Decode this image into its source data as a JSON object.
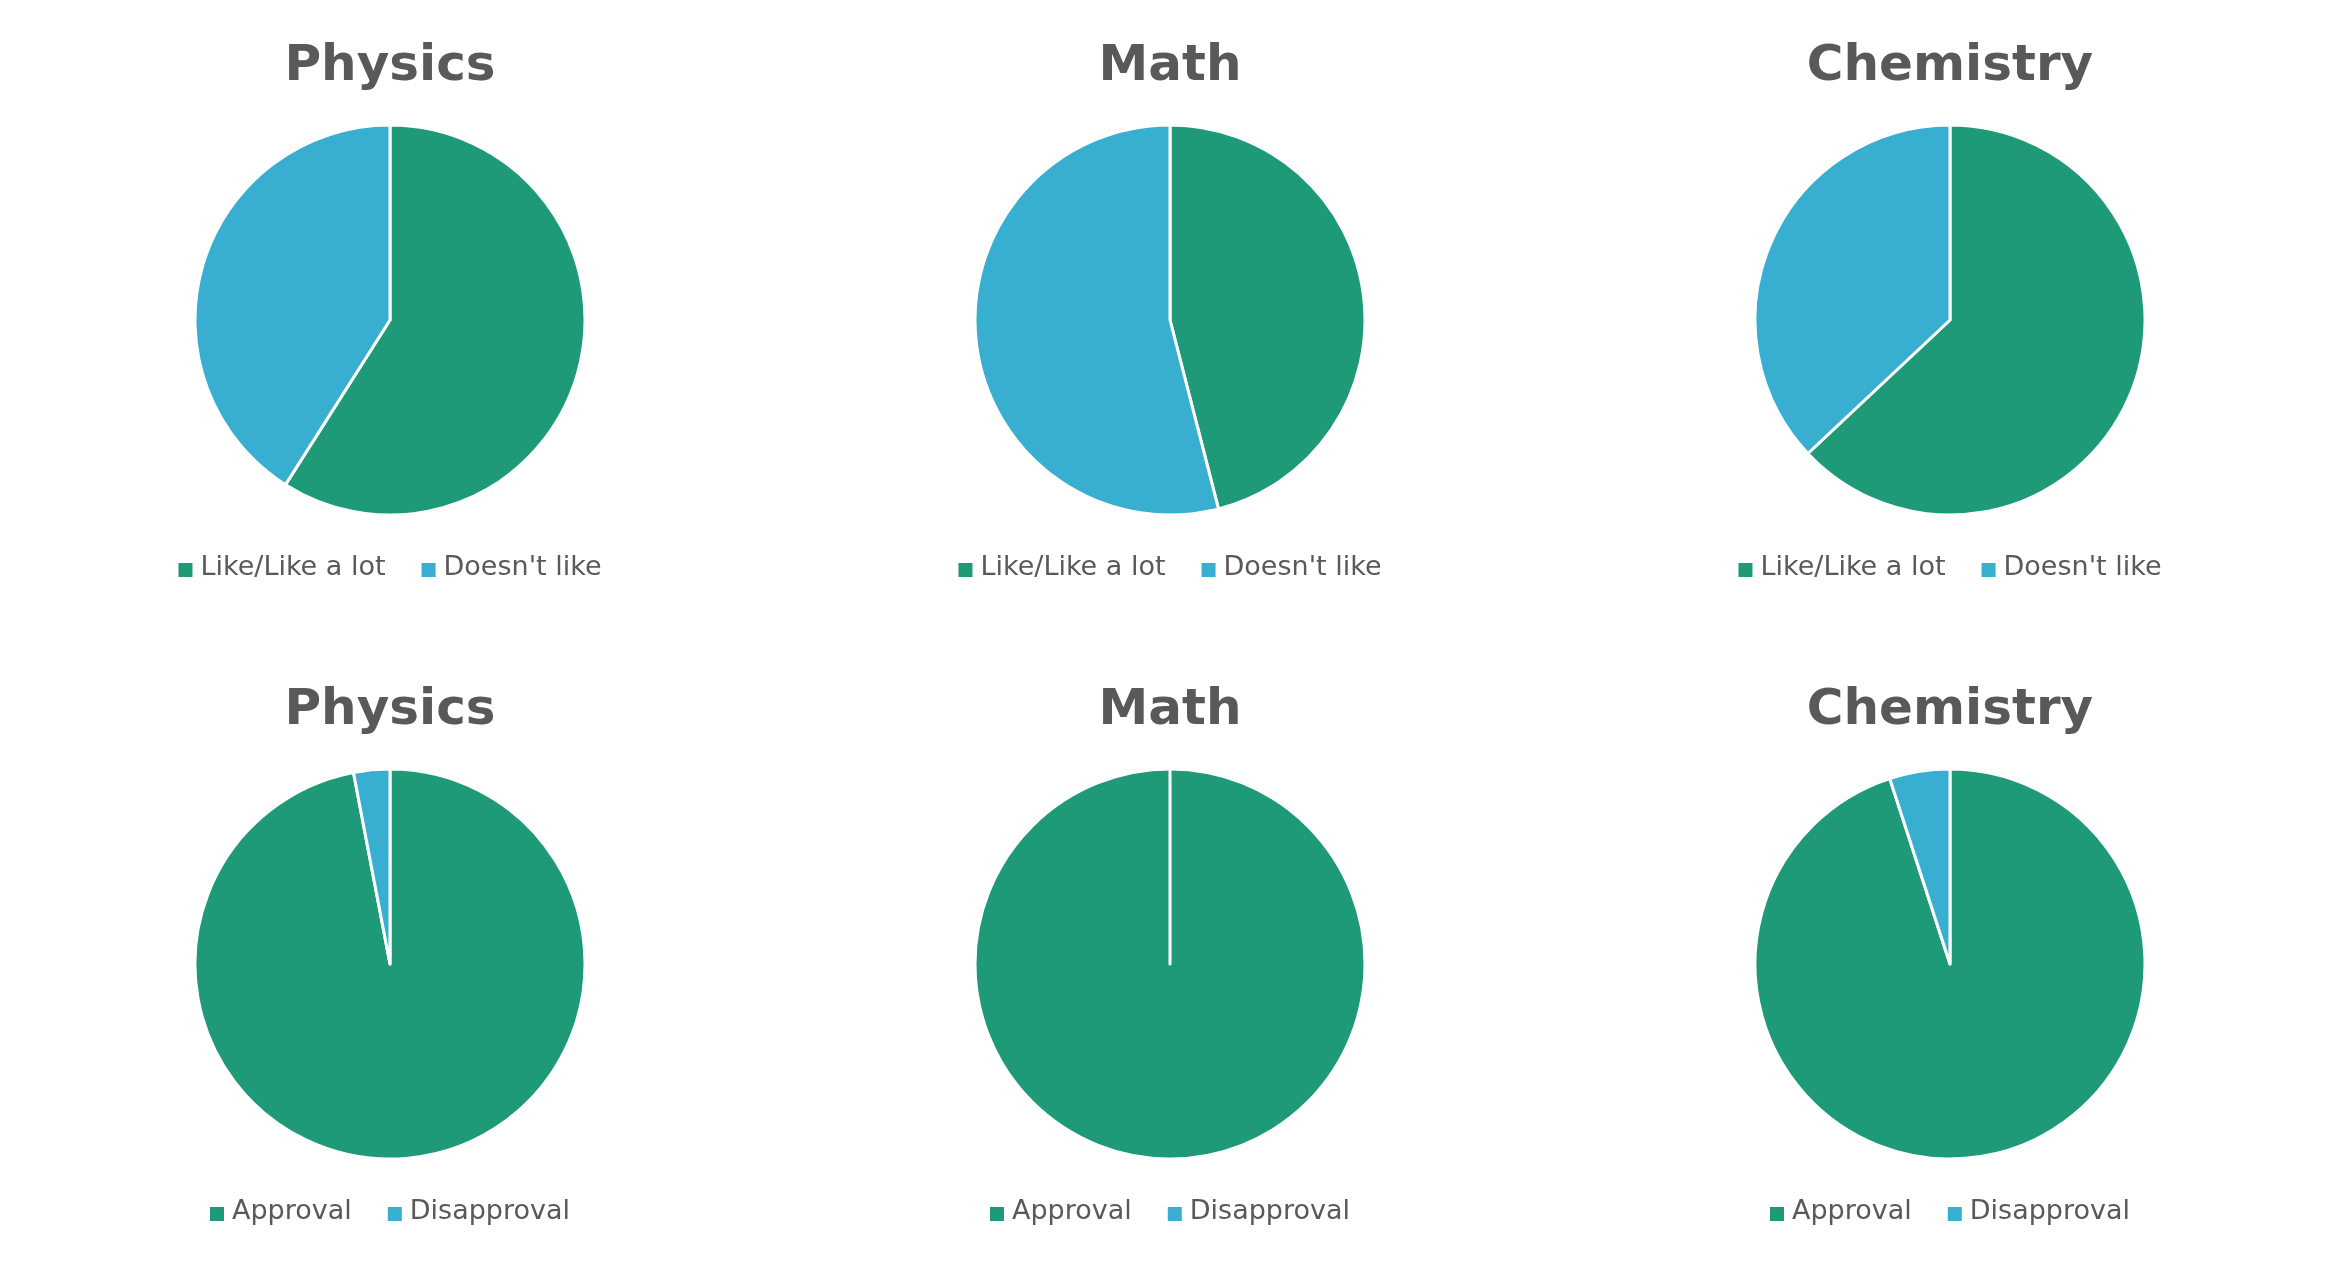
{
  "chart_data": [
    {
      "type": "pie",
      "title": "Physics",
      "categories": [
        "Like/Like a lot",
        "Doesn't like"
      ],
      "values": [
        59,
        41
      ],
      "colors": [
        "#1f9a78",
        "#38aed0"
      ],
      "legend": "bottom"
    },
    {
      "type": "pie",
      "title": "Math",
      "categories": [
        "Like/Like a lot",
        "Doesn't like"
      ],
      "values": [
        46,
        54
      ],
      "colors": [
        "#1f9a78",
        "#38aed0"
      ],
      "legend": "bottom"
    },
    {
      "type": "pie",
      "title": "Chemistry",
      "categories": [
        "Like/Like a lot",
        "Doesn't like"
      ],
      "values": [
        63,
        37
      ],
      "colors": [
        "#1f9a78",
        "#38aed0"
      ],
      "legend": "bottom"
    },
    {
      "type": "pie",
      "title": "Physics",
      "categories": [
        "Approval",
        "Disapproval"
      ],
      "values": [
        97,
        3
      ],
      "colors": [
        "#1f9a78",
        "#38aed0"
      ],
      "legend": "bottom"
    },
    {
      "type": "pie",
      "title": "Math",
      "categories": [
        "Approval",
        "Disapproval"
      ],
      "values": [
        100,
        0
      ],
      "colors": [
        "#1f9a78",
        "#38aed0"
      ],
      "legend": "bottom"
    },
    {
      "type": "pie",
      "title": "Chemistry",
      "categories": [
        "Approval",
        "Disapproval"
      ],
      "values": [
        95,
        5
      ],
      "colors": [
        "#1f9a78",
        "#38aed0"
      ],
      "legend": "bottom"
    }
  ]
}
